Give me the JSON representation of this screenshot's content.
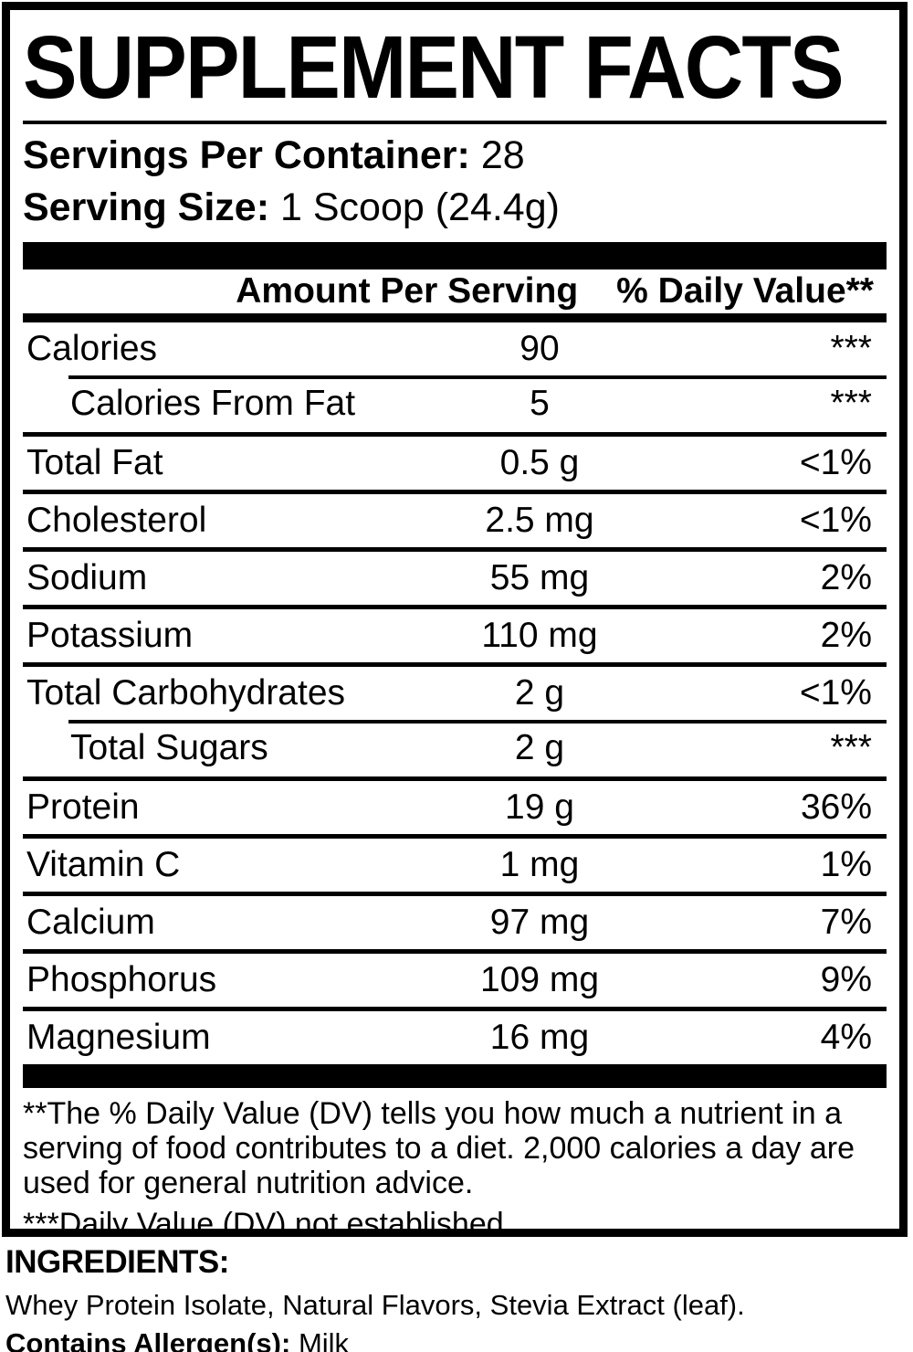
{
  "title": "SUPPLEMENT FACTS",
  "servings_per_container": {
    "label": "Servings Per Container:",
    "value": "28"
  },
  "serving_size": {
    "label": "Serving Size:",
    "value": "1 Scoop (24.4g)"
  },
  "table": {
    "header": {
      "amount": "Amount Per Serving",
      "dv": "% Daily Value**"
    },
    "rows": [
      {
        "name": "Calories",
        "amount": "90",
        "dv": "***",
        "indent": false
      },
      {
        "name": "Calories From Fat",
        "amount": "5",
        "dv": "***",
        "indent": true
      },
      {
        "name": "Total Fat",
        "amount": "0.5 g",
        "dv": "<1%",
        "indent": false
      },
      {
        "name": "Cholesterol",
        "amount": "2.5 mg",
        "dv": "<1%",
        "indent": false
      },
      {
        "name": "Sodium",
        "amount": "55 mg",
        "dv": "2%",
        "indent": false
      },
      {
        "name": "Potassium",
        "amount": "110 mg",
        "dv": "2%",
        "indent": false
      },
      {
        "name": "Total Carbohydrates",
        "amount": "2 g",
        "dv": "<1%",
        "indent": false
      },
      {
        "name": "Total Sugars",
        "amount": "2 g",
        "dv": "***",
        "indent": true
      },
      {
        "name": "Protein",
        "amount": "19 g",
        "dv": "36%",
        "indent": false
      },
      {
        "name": "Vitamin C",
        "amount": "1 mg",
        "dv": "1%",
        "indent": false
      },
      {
        "name": "Calcium",
        "amount": "97 mg",
        "dv": "7%",
        "indent": false
      },
      {
        "name": "Phosphorus",
        "amount": "109 mg",
        "dv": "9%",
        "indent": false
      },
      {
        "name": "Magnesium",
        "amount": "16 mg",
        "dv": "4%",
        "indent": false
      }
    ]
  },
  "footnotes": [
    "**The % Daily Value (DV) tells you how much a nutrient in a serving of food contributes to a diet. 2,000 calories a day are used for general nutrition advice.",
    "***Daily Value (DV) not established."
  ],
  "ingredients": {
    "heading": "INGREDIENTS:",
    "list": "Whey Protein Isolate, Natural Flavors, Stevia Extract (leaf).",
    "allergen_label": "Contains Allergen(s):",
    "allergen_value": "Milk"
  },
  "colors": {
    "text": "#000000",
    "background": "#ffffff"
  }
}
